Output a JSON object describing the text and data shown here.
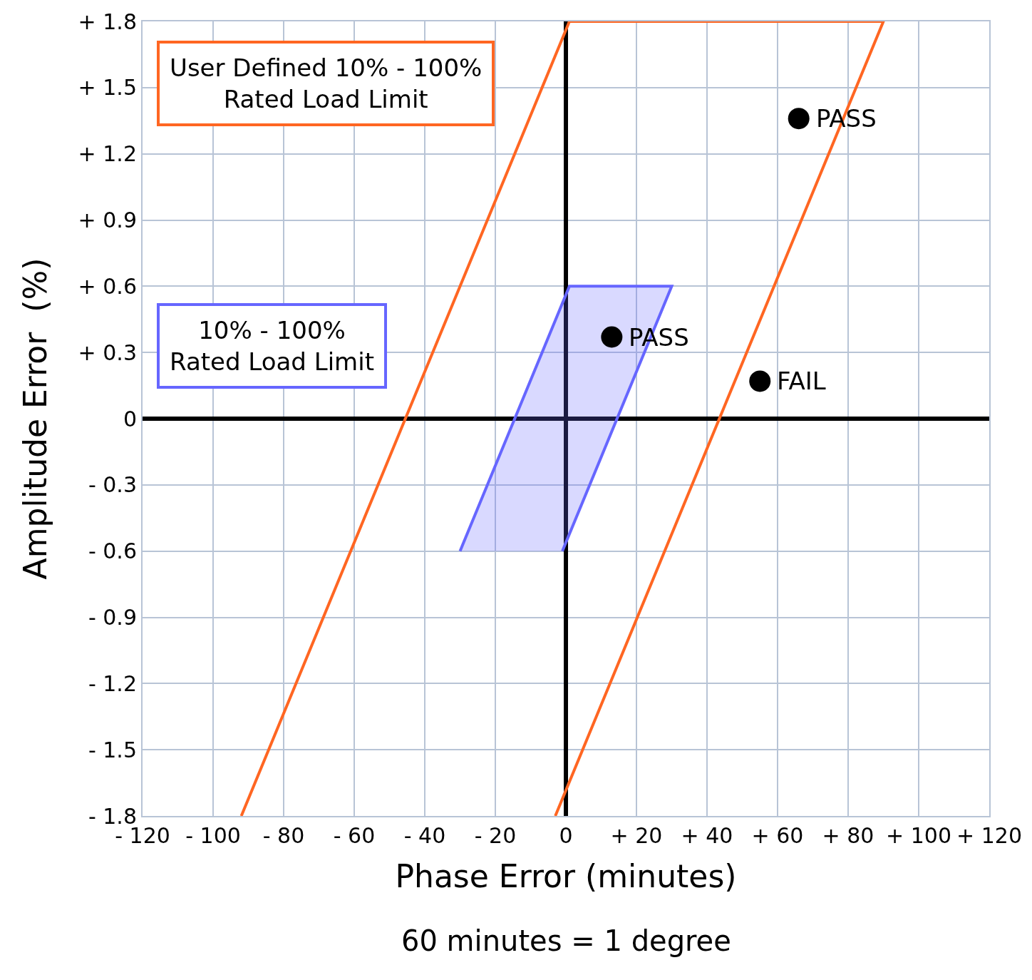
{
  "chart_data": {
    "type": "line",
    "xlabel": "Phase Error (minutes)",
    "ylabel": "Amplitude Error  (%)",
    "annotations": [
      "60 minutes = 1 degree"
    ],
    "xlim": [
      -120,
      120
    ],
    "ylim": [
      -1.8,
      1.8
    ],
    "xticks": [
      {
        "value": -120,
        "label": "- 120"
      },
      {
        "value": -100,
        "label": "- 100"
      },
      {
        "value": -80,
        "label": "- 80"
      },
      {
        "value": -60,
        "label": "- 60"
      },
      {
        "value": -40,
        "label": "- 40"
      },
      {
        "value": -20,
        "label": "- 20"
      },
      0,
      {
        "value": 20,
        "label": "+ 20"
      },
      {
        "value": 40,
        "label": "+ 40"
      },
      {
        "value": 60,
        "label": "+ 60"
      },
      {
        "value": 80,
        "label": "+ 80"
      },
      {
        "value": 100,
        "label": "+ 100"
      },
      {
        "value": 120,
        "label": "+ 120"
      }
    ],
    "yticks": [
      {
        "value": -1.8,
        "label": "- 1.8"
      },
      {
        "value": -1.5,
        "label": "- 1.5"
      },
      {
        "value": -1.2,
        "label": "- 1.2"
      },
      {
        "value": -0.9,
        "label": "- 0.9"
      },
      {
        "value": -0.6,
        "label": "- 0.6"
      },
      {
        "value": -0.3,
        "label": "- 0.3"
      },
      0,
      {
        "value": 0.3,
        "label": "+ 0.3"
      },
      {
        "value": 0.6,
        "label": "+ 0.6"
      },
      {
        "value": 0.9,
        "label": "+ 0.9"
      },
      {
        "value": 1.2,
        "label": "+ 1.2"
      },
      {
        "value": 1.5,
        "label": "+ 1.5"
      },
      {
        "value": 1.8,
        "label": "+ 1.8"
      }
    ],
    "grid": true,
    "legend": false,
    "series": [
      {
        "name": "User Defined 10% - 100%\nRated Load Limit",
        "color": "#ff6622",
        "x": [
          -92,
          1,
          90,
          -3
        ],
        "values": [
          -1.8,
          1.8,
          1.8,
          -1.8
        ]
      },
      {
        "name": "10% - 100%\nRated Load Limit",
        "type": "area",
        "color": "#6666ff",
        "x": [
          -30,
          1,
          30,
          -1
        ],
        "values": [
          -0.6,
          0.6,
          0.6,
          -0.6
        ]
      },
      {
        "type": "scatter",
        "color": "#000000",
        "marker": "circle",
        "x": [
          13,
          55,
          66
        ],
        "values": [
          0.37,
          0.17,
          1.36
        ],
        "value_labels": [
          "PASS",
          "FAIL",
          "PASS"
        ]
      }
    ]
  }
}
